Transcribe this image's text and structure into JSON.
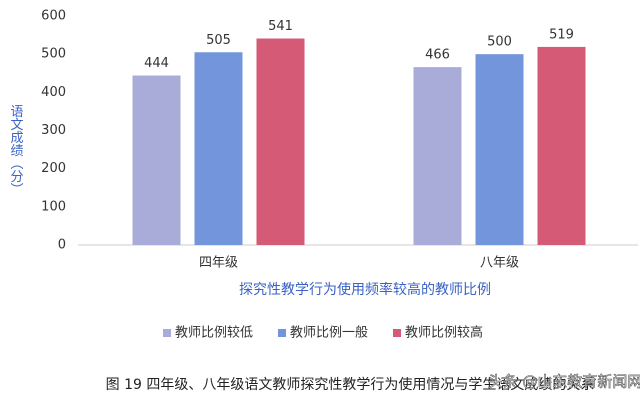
{
  "chart_data": {
    "type": "bar",
    "categories": [
      "四年级",
      "八年级"
    ],
    "series": [
      {
        "name": "教师比例较低",
        "color": "#a9acd9",
        "values": [
          444,
          466
        ]
      },
      {
        "name": "教师比例一般",
        "color": "#7295dc",
        "values": [
          505,
          500
        ]
      },
      {
        "name": "教师比例较高",
        "color": "#d45a76",
        "values": [
          541,
          519
        ]
      }
    ],
    "ylim": [
      0,
      600
    ],
    "yticks": [
      0,
      100,
      200,
      300,
      400,
      500,
      600
    ],
    "grid": false,
    "y_label": "语文成绩（分）",
    "x_label": "探究性教学行为使用频率较高的教师比例",
    "legend_position": "bottom",
    "caption": "图 19   四年级、八年级语文教师探究性教学行为使用情况与学生语文成绩的关系",
    "watermark": "头条 @山东教育新闻网"
  }
}
